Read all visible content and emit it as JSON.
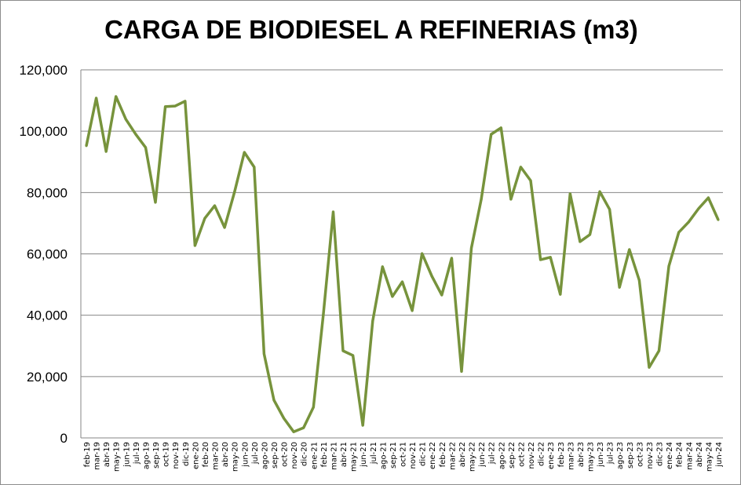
{
  "chart_data": {
    "type": "line",
    "title": "CARGA DE BIODIESEL A REFINERIAS (m3)",
    "xlabel": "",
    "ylabel": "",
    "ylim": [
      0,
      120000
    ],
    "yticks": [
      "0",
      "20,000",
      "40,000",
      "60,000",
      "80,000",
      "100,000",
      "120,000"
    ],
    "grid": true,
    "legend": "none",
    "line_color": "#77933C",
    "categories": [
      "feb-19",
      "mar-19",
      "abr-19",
      "may-19",
      "jun-19",
      "jul-19",
      "ago-19",
      "sep-19",
      "oct-19",
      "nov-19",
      "dic-19",
      "ene-20",
      "feb-20",
      "mar-20",
      "abr-20",
      "may-20",
      "jun-20",
      "jul-20",
      "ago-20",
      "sep-20",
      "oct-20",
      "nov-20",
      "dic-20",
      "ene-21",
      "feb-21",
      "mar-21",
      "abr-21",
      "may-21",
      "jun-21",
      "jul-21",
      "ago-21",
      "sep-21",
      "oct-21",
      "nov-21",
      "dic-21",
      "ene-22",
      "feb-22",
      "mar-22",
      "abr-22",
      "may-22",
      "jun-22",
      "jul-22",
      "ago-22",
      "sep-22",
      "oct-22",
      "nov-22",
      "dic-22",
      "ene-23",
      "feb-23",
      "mar-23",
      "abr-23",
      "may-23",
      "jun-23",
      "jul-23",
      "ago-23",
      "sep-23",
      "oct-23",
      "nov-23",
      "dic-23",
      "ene-24",
      "feb-24",
      "mar-24",
      "abr-24",
      "may-24",
      "jun-24"
    ],
    "values": [
      95200,
      110800,
      93400,
      111300,
      103900,
      99000,
      94700,
      76800,
      108000,
      108200,
      109800,
      62700,
      71600,
      75700,
      68600,
      80100,
      93100,
      88300,
      27400,
      12300,
      6400,
      2000,
      3300,
      10000,
      40200,
      73700,
      28400,
      26900,
      4100,
      38100,
      55800,
      46100,
      50900,
      41500,
      60100,
      52700,
      46600,
      58600,
      21700,
      61900,
      77800,
      99000,
      101100,
      77800,
      88300,
      83900,
      58100,
      58900,
      46800,
      79600,
      64000,
      66300,
      80300,
      74500,
      49100,
      61400,
      51400,
      23000,
      28400,
      56000,
      67000,
      70400,
      74700,
      78300,
      71100
    ]
  }
}
